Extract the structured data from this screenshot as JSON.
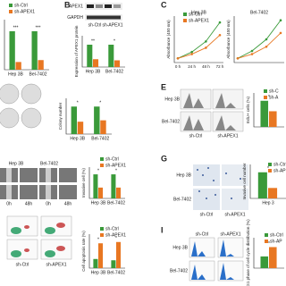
{
  "panel_letters": [
    "B",
    "C",
    "E",
    "G",
    "I"
  ],
  "annotations": [
    "APEX1",
    "GAPDH",
    "sh-Ctrl",
    "sh-APEX1",
    "Hep 3B",
    "Bel-7402",
    "sh-Ctrl",
    "sh-APEX1",
    "Hep 3B",
    "Bel-7402",
    "0h",
    "48h",
    "0h",
    "48h",
    "Hep 3B",
    "Bel-7402",
    "sh-Ctrl",
    "sh-APEX1",
    "sh-Ctrl",
    "sh-APEX1",
    "Hep 3B",
    "Bel-7402",
    "sh-Ctrl",
    "sh-APEX1"
  ],
  "chart_data": [
    {
      "type": "bar",
      "categories": [
        "Hep 3B",
        "Bel-7402"
      ],
      "ylim": [
        0,
        1.3
      ],
      "stars": [
        "***",
        "***"
      ],
      "series": [
        {
          "name": "sh-Ctrl",
          "color": "#3a9a3a",
          "values": [
            1,
            1
          ]
        },
        {
          "name": "sh-APEX1",
          "color": "#e87722",
          "values": [
            0.2,
            0.25
          ]
        }
      ]
    },
    {
      "type": "bar",
      "ylabel": "Expression of APEX1 protein",
      "categories": [
        "Hep 3B",
        "Bel-7402"
      ],
      "ylim": [
        0,
        1.4
      ],
      "stars": [
        "**",
        "*"
      ],
      "series": [
        {
          "color": "#3a9a3a",
          "values": [
            1,
            1
          ]
        },
        {
          "color": "#e87722",
          "values": [
            0.35,
            0.3
          ]
        }
      ]
    },
    {
      "type": "line",
      "title": "Hep 3B",
      "ylabel": "Absorbance (450 nm)",
      "categories": [
        "0 h",
        "24 h",
        "48 h",
        "72 h"
      ],
      "ylim": [
        0,
        2.2
      ],
      "series": [
        {
          "name": "sh-Ctrl",
          "color": "#3a9a3a",
          "values": [
            0.2,
            0.5,
            1.0,
            1.9
          ]
        },
        {
          "name": "sh-APEX1",
          "color": "#e87722",
          "values": [
            0.2,
            0.4,
            0.7,
            1.3
          ]
        }
      ]
    },
    {
      "type": "line",
      "title": "Bel-7402",
      "ylabel": "Absorbance (450 nm)",
      "ylim": [
        0,
        2.2
      ],
      "series": [
        {
          "color": "#3a9a3a",
          "values": [
            0.2,
            0.55,
            1.1,
            2.0
          ]
        },
        {
          "color": "#e87722",
          "values": [
            0.2,
            0.4,
            0.75,
            1.4
          ]
        }
      ]
    },
    {
      "type": "bar",
      "ylabel": "Colony number",
      "categories": [
        "Hep 3B",
        "Bel-7402"
      ],
      "ylim": [
        0,
        1.3
      ],
      "stars": [
        "*",
        "*"
      ],
      "series": [
        {
          "color": "#3a9a3a",
          "values": [
            1,
            1
          ]
        },
        {
          "color": "#e87722",
          "values": [
            0.45,
            0.5
          ]
        }
      ]
    },
    {
      "type": "bar",
      "ylabel": "EdU+ cells (%)",
      "categories": [
        null
      ],
      "ylim": [
        0,
        1.3
      ],
      "stars": [
        "*"
      ],
      "series": [
        {
          "name": "sh-C",
          "color": "#3a9a3a",
          "values": [
            1
          ]
        },
        {
          "name": "sh-A",
          "color": "#e87722",
          "values": [
            0.6
          ]
        }
      ]
    },
    {
      "type": "bar",
      "ylabel": "Invasive cell (%)",
      "categories": [
        "Hep 3B",
        "Bel-7402"
      ],
      "ylim": [
        0,
        1.3
      ],
      "stars": [
        "*",
        "*"
      ],
      "series": [
        {
          "name": "sh-Ctrl",
          "color": "#3a9a3a",
          "values": [
            1,
            1
          ]
        },
        {
          "name": "sh-APEX1",
          "color": "#e87722",
          "values": [
            0.45,
            0.45
          ]
        }
      ]
    },
    {
      "type": "bar",
      "ylabel": "Invasive cell number",
      "categories": [
        "Hep 3"
      ],
      "ylim": [
        0,
        1.3
      ],
      "stars": [
        "*"
      ],
      "series": [
        {
          "name": "sh-Ctrl",
          "color": "#3a9a3a",
          "values": [
            1
          ]
        },
        {
          "name": "sh-APEX1",
          "color": "#e87722",
          "values": [
            0.4
          ]
        }
      ]
    },
    {
      "type": "bar",
      "ylabel": "Cell apoptosis rate (%)",
      "categories": [
        "Hep 3B",
        "Bel-7402"
      ],
      "ylim": [
        0,
        1.3
      ],
      "stars": [
        "*",
        "*"
      ],
      "series": [
        {
          "name": "sh-Ctrl",
          "color": "#3a9a3a",
          "values": [
            0.35,
            0.3
          ]
        },
        {
          "name": "sh-APEX1",
          "color": "#e87722",
          "values": [
            0.95,
            1.0
          ]
        }
      ]
    },
    {
      "type": "bar",
      "ylabel": "G1 phase of cell cycle distribution (%)",
      "categories": [
        null
      ],
      "ylim": [
        0,
        1.3
      ],
      "stars": [
        "*"
      ],
      "series": [
        {
          "name": "sh-Ctrl",
          "color": "#3a9a3a",
          "values": [
            0.5
          ]
        },
        {
          "name": "sh-AP",
          "color": "#e87722",
          "values": [
            0.9
          ]
        }
      ]
    }
  ]
}
